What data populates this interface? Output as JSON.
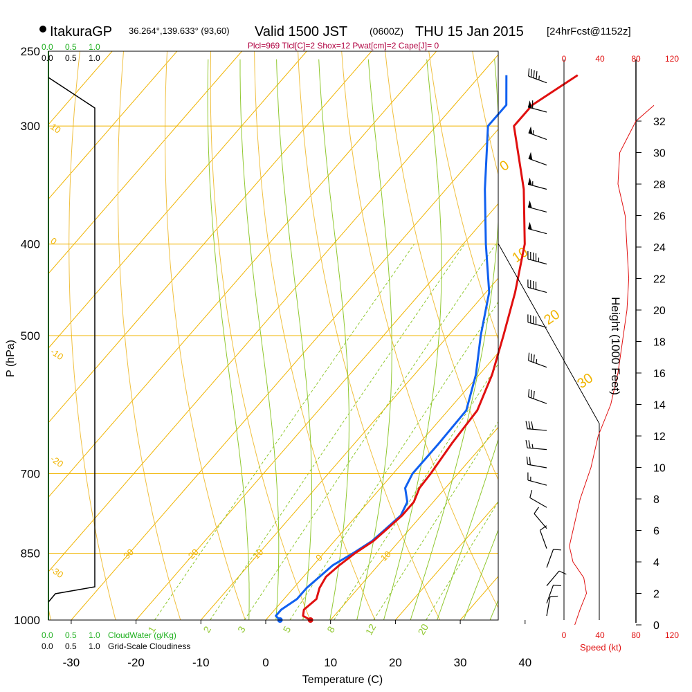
{
  "header": {
    "station": "ItakuraGP",
    "coords": "36.264°,139.633° (93,60)",
    "valid": "Valid 1500 JST",
    "utc": "(0600Z)",
    "date": "THU 15 Jan 2015",
    "forecast": "[24hrFcst@1152z]",
    "indices": "Plcl=969 Tlcl[C]=2 Shox=12 Pwat[cm]=2 Cape[J]= 0"
  },
  "colors": {
    "temperature": "#e01010",
    "dewpoint": "#1060f0",
    "isobar": "#f0b400",
    "dry_adiabat": "#f0c040",
    "moist_adiabat": "#90c830",
    "mixing_ratio": "#90c830",
    "cloud": "#20b020",
    "speed_axis": "#e01010",
    "indices": "#b00040",
    "black": "#000000"
  },
  "chart_data": {
    "type": "skew-t",
    "title": "Valid 1500 JST (0600Z) THU 15 Jan 2015",
    "xlabel": "Temperature (C)",
    "ylabel": "P (hPa)",
    "xlim": [
      -35,
      35
    ],
    "pressure_range": [
      1000,
      250
    ],
    "x_ticks": [
      "-30",
      "-20",
      "-10",
      "0",
      "10",
      "20",
      "30",
      "40"
    ],
    "x_tick_values": [
      -30,
      -20,
      -10,
      0,
      10,
      20,
      30,
      40
    ],
    "p_levels": [
      {
        "p": 250,
        "label": "250",
        "draw_line": false
      },
      {
        "p": 300,
        "label": "300",
        "draw_line": true
      },
      {
        "p": 400,
        "label": "400",
        "draw_line": true
      },
      {
        "p": 500,
        "label": "500",
        "draw_line": true
      },
      {
        "p": 700,
        "label": "700",
        "draw_line": true
      },
      {
        "p": 850,
        "label": "850",
        "draw_line": true
      },
      {
        "p": 1000,
        "label": "1000",
        "draw_line": true
      }
    ],
    "temperature": {
      "name": "Temperature",
      "p": [
        1000,
        990,
        975,
        950,
        925,
        900,
        875,
        850,
        825,
        800,
        775,
        750,
        725,
        700,
        650,
        600,
        550,
        500,
        450,
        400,
        350,
        300,
        285,
        265
      ],
      "t": [
        6.9,
        5.2,
        4.5,
        5.0,
        4.0,
        3.5,
        4.0,
        4.8,
        6.0,
        6.5,
        7.0,
        7.0,
        6.0,
        5.8,
        5.0,
        4.5,
        2.0,
        -1.5,
        -5.5,
        -10.5,
        -18.0,
        -28.0,
        -28.0,
        -25.0
      ]
    },
    "dewpoint": {
      "name": "Dew point",
      "p": [
        1000,
        990,
        975,
        950,
        925,
        900,
        875,
        850,
        825,
        800,
        775,
        750,
        725,
        700,
        650,
        600,
        550,
        500,
        450,
        400,
        350,
        300,
        285,
        265
      ],
      "t": [
        2.2,
        1.0,
        1.0,
        2.0,
        2.0,
        2.5,
        3.0,
        4.5,
        5.8,
        6.3,
        6.8,
        6.0,
        3.8,
        3.0,
        3.0,
        2.8,
        -0.5,
        -5.0,
        -9.5,
        -16.5,
        -24.0,
        -32.0,
        -32.0,
        -36.0
      ]
    },
    "dry_adiabat_labels": [
      {
        "theta": 300,
        "text": "30"
      },
      {
        "theta": 290,
        "text": "20"
      },
      {
        "theta": 280,
        "text": "10"
      },
      {
        "theta": 270,
        "text": "0"
      },
      {
        "theta": 260,
        "text": "-10"
      },
      {
        "theta": 250,
        "text": "-20"
      },
      {
        "theta": 240,
        "text": "-30"
      }
    ],
    "isotherm_labels": [
      {
        "t": 10,
        "text": "10"
      },
      {
        "t": 0,
        "text": "0"
      },
      {
        "t": -10,
        "text": "-10"
      },
      {
        "t": -20,
        "text": "-20"
      },
      {
        "t": -30,
        "text": "-30"
      }
    ],
    "mixing_ratios": [
      {
        "w": 1,
        "text": "1"
      },
      {
        "w": 2,
        "text": "2"
      },
      {
        "w": 3,
        "text": "3"
      },
      {
        "w": 5,
        "text": "5"
      },
      {
        "w": 8,
        "text": "8"
      },
      {
        "w": 12,
        "text": "12"
      },
      {
        "w": 20,
        "text": "20"
      }
    ],
    "cloud_panel": {
      "cloudwater_label": "CloudWater (g/Kg)",
      "cloudiness_label": "Grid-Scale Cloudiness",
      "ticks": [
        "0.0",
        "0.5",
        "1.0"
      ]
    },
    "wind": {
      "speed_label": "Speed (kt)",
      "speed_ticks": [
        "0",
        "40",
        "80",
        "120"
      ],
      "height_label": "Height (1000 Feet)",
      "height_ticks": [
        "0",
        "2",
        "4",
        "6",
        "8",
        "10",
        "12",
        "14",
        "16",
        "18",
        "20",
        "22",
        "24",
        "26",
        "28",
        "30",
        "32"
      ],
      "height_kft": [
        0,
        1,
        2,
        3,
        4,
        5,
        6,
        7,
        8,
        9,
        10,
        12,
        14,
        16,
        18,
        20,
        22,
        24,
        26,
        28,
        30,
        32,
        33
      ],
      "speed_kt": [
        12,
        18,
        25,
        22,
        10,
        6,
        10,
        14,
        18,
        24,
        30,
        38,
        52,
        60,
        65,
        70,
        72,
        70,
        68,
        60,
        62,
        80,
        100
      ],
      "barbs": [
        {
          "p": 270,
          "speed": 45,
          "dir": 290
        },
        {
          "p": 290,
          "speed": 60,
          "dir": 285
        },
        {
          "p": 310,
          "speed": 55,
          "dir": 290
        },
        {
          "p": 330,
          "speed": 50,
          "dir": 290
        },
        {
          "p": 350,
          "speed": 55,
          "dir": 285
        },
        {
          "p": 370,
          "speed": 50,
          "dir": 285
        },
        {
          "p": 390,
          "speed": 50,
          "dir": 285
        },
        {
          "p": 420,
          "speed": 45,
          "dir": 285
        },
        {
          "p": 450,
          "speed": 40,
          "dir": 285
        },
        {
          "p": 490,
          "speed": 40,
          "dir": 285
        },
        {
          "p": 540,
          "speed": 35,
          "dir": 290
        },
        {
          "p": 590,
          "speed": 30,
          "dir": 290
        },
        {
          "p": 630,
          "speed": 30,
          "dir": 275
        },
        {
          "p": 660,
          "speed": 25,
          "dir": 275
        },
        {
          "p": 690,
          "speed": 20,
          "dir": 280
        },
        {
          "p": 720,
          "speed": 15,
          "dir": 285
        },
        {
          "p": 760,
          "speed": 10,
          "dir": 300
        },
        {
          "p": 800,
          "speed": 8,
          "dir": 320
        },
        {
          "p": 840,
          "speed": 8,
          "dir": 340
        },
        {
          "p": 880,
          "speed": 10,
          "dir": 20
        },
        {
          "p": 920,
          "speed": 12,
          "dir": 40
        },
        {
          "p": 960,
          "speed": 12,
          "dir": 20
        },
        {
          "p": 990,
          "speed": 10,
          "dir": 10
        }
      ]
    }
  }
}
